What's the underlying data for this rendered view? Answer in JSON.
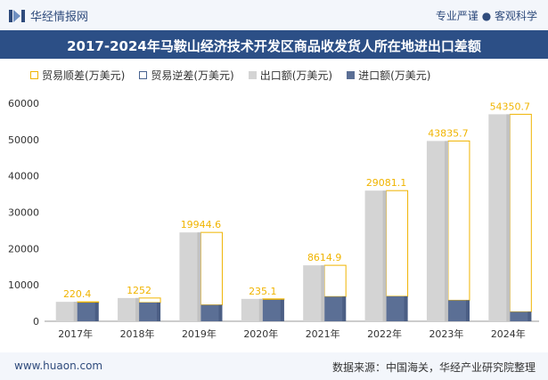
{
  "header": {
    "brand": "华经情报网",
    "tagline": "专业严谨 ● 客观科学"
  },
  "footer": {
    "website": "www.huaon.com",
    "source": "数据来源：中国海关，华经产业研究院整理"
  },
  "colors": {
    "surplus": "#f0b400",
    "deficit": "#4a6491",
    "export": "#d4d4d4",
    "import": "#5b6f95",
    "title_bg": "#2c4f86"
  },
  "chart_data": {
    "type": "bar",
    "title": "2017-2024年马鞍山经济技术开发区商品收发货人所在地进出口差额",
    "categories": [
      "2017年",
      "2018年",
      "2019年",
      "2020年",
      "2021年",
      "2022年",
      "2023年",
      "2024年"
    ],
    "series": [
      {
        "name": "贸易顺差(万美元)",
        "values": [
          220.4,
          1252,
          19944.6,
          235.1,
          8614.9,
          29081.1,
          43835.7,
          54350.7
        ],
        "style": "outline"
      },
      {
        "name": "贸易逆差(万美元)",
        "values": [
          0,
          0,
          0,
          0,
          0,
          0,
          0,
          0
        ],
        "style": "outline"
      },
      {
        "name": "出口额(万美元)",
        "values": [
          5350,
          6400,
          24450,
          6160,
          15400,
          35950,
          49610,
          56960
        ]
      },
      {
        "name": "进口额(万美元)",
        "values": [
          5130,
          5148,
          4505,
          5925,
          6785,
          6869,
          5774,
          2609
        ]
      }
    ],
    "data_labels": [
      "220.4",
      "1252",
      "19944.6",
      "235.1",
      "8614.9",
      "29081.1",
      "43835.7",
      "54350.7"
    ],
    "y_ticks": [
      "0",
      "10000",
      "20000",
      "30000",
      "40000",
      "50000",
      "60000"
    ],
    "ylim": [
      0,
      60000
    ],
    "grid": false,
    "legend_position": "top"
  }
}
